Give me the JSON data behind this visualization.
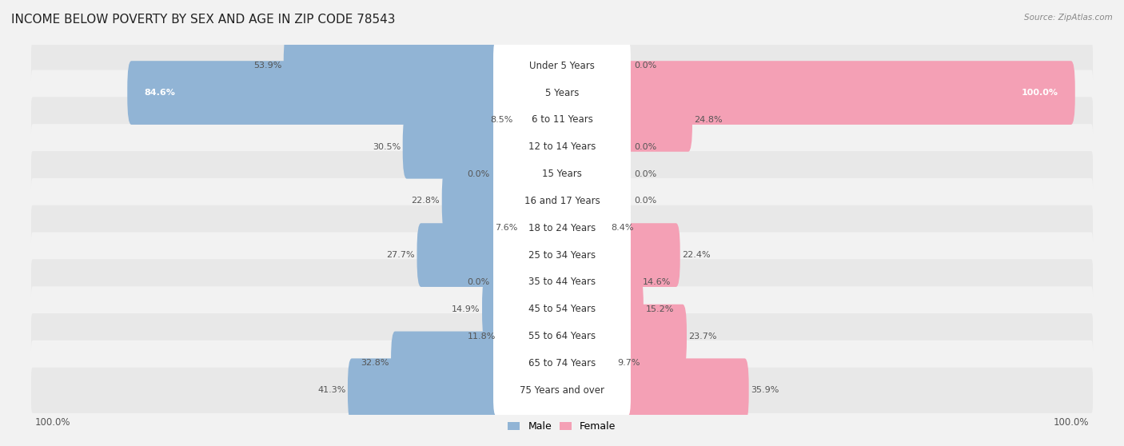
{
  "title": "INCOME BELOW POVERTY BY SEX AND AGE IN ZIP CODE 78543",
  "source": "Source: ZipAtlas.com",
  "categories": [
    "Under 5 Years",
    "5 Years",
    "6 to 11 Years",
    "12 to 14 Years",
    "15 Years",
    "16 and 17 Years",
    "18 to 24 Years",
    "25 to 34 Years",
    "35 to 44 Years",
    "45 to 54 Years",
    "55 to 64 Years",
    "65 to 74 Years",
    "75 Years and over"
  ],
  "male_values": [
    53.9,
    84.6,
    8.5,
    30.5,
    0.0,
    22.8,
    7.6,
    27.7,
    0.0,
    14.9,
    11.8,
    32.8,
    41.3
  ],
  "female_values": [
    0.0,
    100.0,
    24.8,
    0.0,
    0.0,
    0.0,
    8.4,
    22.4,
    14.6,
    15.2,
    23.7,
    9.7,
    35.9
  ],
  "male_color": "#91b4d5",
  "female_color": "#f4a0b5",
  "male_label": "Male",
  "female_label": "Female",
  "background_color": "#f2f2f2",
  "row_colors": [
    "#e8e8e8",
    "#f2f2f2"
  ],
  "title_fontsize": 11,
  "label_fontsize": 8.5,
  "value_fontsize": 8,
  "xlim": 100
}
